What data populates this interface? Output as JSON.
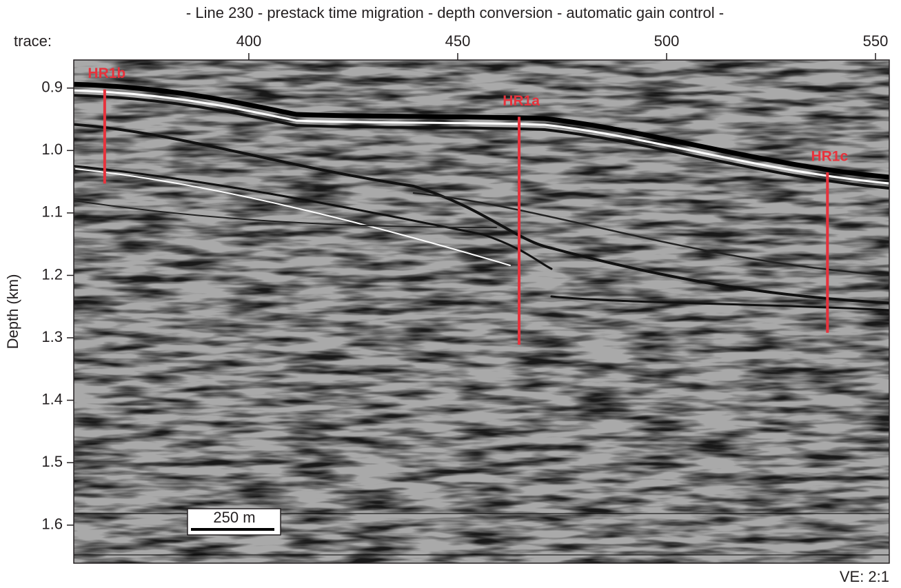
{
  "chart_data": {
    "type": "seismic-section",
    "title": "-  Line 230 - prestack time migration - depth conversion - automatic gain control -",
    "x_label": "trace:",
    "y_label": "Depth (km)",
    "xlim": [
      358.1,
      553.3
    ],
    "xticks": [
      400,
      450,
      500,
      550
    ],
    "ylim": [
      1.661,
      0.855
    ],
    "yticks": [
      0.9,
      {
        "value": 1,
        "label": "1.0"
      },
      1.1,
      1.2,
      1.3,
      1.4,
      1.5,
      1.6
    ],
    "wells": [
      {
        "name": "HR1b",
        "trace": 365.5,
        "top": 0.902,
        "bottom": 1.053
      },
      {
        "name": "HR1a",
        "trace": 464.7,
        "top": 0.946,
        "bottom": 1.311
      },
      {
        "name": "HR1c",
        "trace": 538.5,
        "top": 1.035,
        "bottom": 1.292
      }
    ],
    "well_color": "#e8323c",
    "scale_bar": "250 m",
    "note": "VE: 2:1"
  }
}
